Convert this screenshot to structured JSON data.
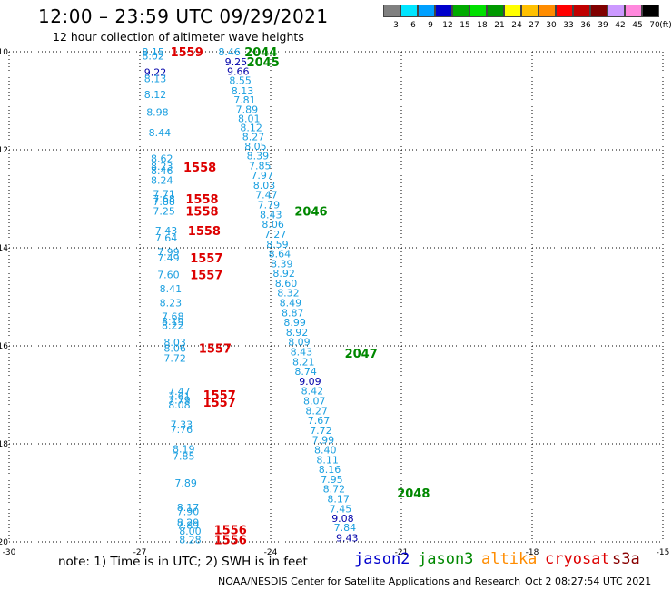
{
  "header": {
    "title": "12:00 – 23:59 UTC 09/29/2021",
    "subtitle": "12 hour collection of altimeter wave heights"
  },
  "colorbar": {
    "colors": [
      "#808080",
      "#00e5ff",
      "#00a0ff",
      "#0000cc",
      "#00aa00",
      "#00e000",
      "#009900",
      "#ffff00",
      "#ffc000",
      "#ff8c00",
      "#ff0000",
      "#c00000",
      "#800000",
      "#cc99ff",
      "#ff88dd",
      "#000000"
    ],
    "labels": [
      "3",
      "6",
      "9",
      "12",
      "15",
      "18",
      "21",
      "24",
      "27",
      "30",
      "33",
      "36",
      "39",
      "42",
      "45",
      "70"
    ],
    "unit": "(ft)"
  },
  "axes": {
    "lat_labels": [
      "-10",
      "-12",
      "-14",
      "-16",
      "-18",
      "-20"
    ],
    "lon_labels": [
      "-30",
      "-27",
      "-24",
      "-21",
      "-18",
      "-15"
    ]
  },
  "footer": {
    "note": "note: 1) Time is in UTC; 2) SWH is in feet",
    "satellites": [
      {
        "name": "jason2",
        "color": "#0000cc"
      },
      {
        "name": "jason3",
        "color": "#008800"
      },
      {
        "name": "altika",
        "color": "#ff8c00"
      },
      {
        "name": "cryosat",
        "color": "#dd0000"
      },
      {
        "name": "s3a",
        "color": "#880000"
      }
    ],
    "credit": "NOAA/NESDIS Center for Satellite Applications and Research",
    "timestamp": "Oct  2 08:27:54 UTC 2021"
  },
  "chart_data": {
    "type": "scatter",
    "lon_range": [
      -30,
      -15
    ],
    "lat_range": [
      -20,
      -10
    ],
    "lon_ticks": [
      -30,
      -27,
      -24,
      -21,
      -18,
      -15
    ],
    "lat_ticks": [
      -10,
      -12,
      -14,
      -16,
      -18,
      -20
    ],
    "grid": true,
    "series": [
      {
        "name": "cryosat",
        "color": "#dd0000",
        "time_labels": [
          {
            "text": "1559",
            "lon": -26.3,
            "lat": -10.0
          },
          {
            "text": "1558",
            "lon": -26.0,
            "lat": -12.35
          },
          {
            "text": "1558",
            "lon": -25.95,
            "lat": -13.0
          },
          {
            "text": "1558",
            "lon": -25.95,
            "lat": -13.25
          },
          {
            "text": "1558",
            "lon": -25.9,
            "lat": -13.65
          },
          {
            "text": "1557",
            "lon": -25.85,
            "lat": -14.2
          },
          {
            "text": "1557",
            "lon": -25.85,
            "lat": -14.55
          },
          {
            "text": "1557",
            "lon": -25.65,
            "lat": -16.05
          },
          {
            "text": "1557",
            "lon": -25.55,
            "lat": -17.0
          },
          {
            "text": "1557",
            "lon": -25.55,
            "lat": -17.15
          },
          {
            "text": "1556",
            "lon": -25.3,
            "lat": -19.75
          },
          {
            "text": "1556",
            "lon": -25.3,
            "lat": -19.95
          }
        ],
        "points": [
          {
            "lon": -26.95,
            "lat": -10.0,
            "swh": 8.15
          },
          {
            "lon": -26.95,
            "lat": -10.08,
            "swh": 8.02
          },
          {
            "lon": -26.9,
            "lat": -10.42,
            "swh": 9.22
          },
          {
            "lon": -26.9,
            "lat": -10.55,
            "swh": 8.13
          },
          {
            "lon": -26.9,
            "lat": -10.87,
            "swh": 8.12
          },
          {
            "lon": -26.85,
            "lat": -11.23,
            "swh": 8.98
          },
          {
            "lon": -26.8,
            "lat": -11.65,
            "swh": 8.44
          },
          {
            "lon": -26.75,
            "lat": -12.18,
            "swh": 8.62
          },
          {
            "lon": -26.75,
            "lat": -12.33,
            "swh": 8.23
          },
          {
            "lon": -26.75,
            "lat": -12.43,
            "swh": 8.46
          },
          {
            "lon": -26.75,
            "lat": -12.62,
            "swh": 8.24
          },
          {
            "lon": -26.7,
            "lat": -12.9,
            "swh": 7.71
          },
          {
            "lon": -26.7,
            "lat": -13.0,
            "swh": 7.68
          },
          {
            "lon": -26.7,
            "lat": -13.06,
            "swh": 7.88
          },
          {
            "lon": -26.7,
            "lat": -13.25,
            "swh": 7.25
          },
          {
            "lon": -26.65,
            "lat": -13.65,
            "swh": 7.43
          },
          {
            "lon": -26.65,
            "lat": -13.8,
            "swh": 7.64
          },
          {
            "lon": -26.6,
            "lat": -14.08,
            "swh": 7.99
          },
          {
            "lon": -26.6,
            "lat": -14.2,
            "swh": 7.49
          },
          {
            "lon": -26.6,
            "lat": -14.55,
            "swh": 7.6
          },
          {
            "lon": -26.55,
            "lat": -14.83,
            "swh": 8.41
          },
          {
            "lon": -26.55,
            "lat": -15.12,
            "swh": 8.23
          },
          {
            "lon": -26.5,
            "lat": -15.4,
            "swh": 7.68
          },
          {
            "lon": -26.5,
            "lat": -15.5,
            "swh": 8.19
          },
          {
            "lon": -26.5,
            "lat": -15.58,
            "swh": 8.22
          },
          {
            "lon": -26.45,
            "lat": -15.93,
            "swh": 8.03
          },
          {
            "lon": -26.45,
            "lat": -16.05,
            "swh": 8.06
          },
          {
            "lon": -26.45,
            "lat": -16.25,
            "swh": 7.72
          },
          {
            "lon": -26.35,
            "lat": -16.93,
            "swh": 7.47
          },
          {
            "lon": -26.35,
            "lat": -17.03,
            "swh": 7.61
          },
          {
            "lon": -26.35,
            "lat": -17.1,
            "swh": 7.79
          },
          {
            "lon": -26.35,
            "lat": -17.2,
            "swh": 8.08
          },
          {
            "lon": -26.3,
            "lat": -17.6,
            "swh": 7.33
          },
          {
            "lon": -26.3,
            "lat": -17.7,
            "swh": 7.76
          },
          {
            "lon": -26.25,
            "lat": -18.1,
            "swh": 8.19
          },
          {
            "lon": -26.25,
            "lat": -18.25,
            "swh": 7.85
          },
          {
            "lon": -26.2,
            "lat": -18.8,
            "swh": 7.89
          },
          {
            "lon": -26.15,
            "lat": -19.3,
            "swh": 8.17
          },
          {
            "lon": -26.15,
            "lat": -19.38,
            "swh": 7.9
          },
          {
            "lon": -26.15,
            "lat": -19.6,
            "swh": 8.29
          },
          {
            "lon": -26.15,
            "lat": -19.66,
            "swh": 7.89
          },
          {
            "lon": -26.1,
            "lat": -19.78,
            "swh": 8.0
          },
          {
            "lon": -26.1,
            "lat": -19.95,
            "swh": 8.28
          }
        ]
      },
      {
        "name": "jason3",
        "color": "#008800",
        "time_labels": [
          {
            "text": "2044",
            "lon": -24.6,
            "lat": -10.0
          },
          {
            "text": "2045",
            "lon": -24.55,
            "lat": -10.2
          },
          {
            "text": "2046",
            "lon": -23.45,
            "lat": -13.25
          },
          {
            "text": "2047",
            "lon": -22.3,
            "lat": -16.15
          },
          {
            "text": "2048",
            "lon": -21.1,
            "lat": -19.0
          }
        ],
        "points": [
          {
            "lon": -25.2,
            "lat": -10.0,
            "swh": 8.46
          },
          {
            "lon": -25.05,
            "lat": -10.2,
            "swh": 9.25
          },
          {
            "lon": -25.0,
            "lat": -10.4,
            "swh": 9.66
          },
          {
            "lon": -24.95,
            "lat": -10.58,
            "swh": 8.55
          },
          {
            "lon": -24.9,
            "lat": -10.8,
            "swh": 8.13
          },
          {
            "lon": -24.85,
            "lat": -10.98,
            "swh": 7.81
          },
          {
            "lon": -24.8,
            "lat": -11.18,
            "swh": 7.89
          },
          {
            "lon": -24.75,
            "lat": -11.36,
            "swh": 8.01
          },
          {
            "lon": -24.7,
            "lat": -11.55,
            "swh": 8.12
          },
          {
            "lon": -24.65,
            "lat": -11.73,
            "swh": 8.27
          },
          {
            "lon": -24.6,
            "lat": -11.93,
            "swh": 8.05
          },
          {
            "lon": -24.55,
            "lat": -12.12,
            "swh": 8.39
          },
          {
            "lon": -24.5,
            "lat": -12.32,
            "swh": 7.85
          },
          {
            "lon": -24.45,
            "lat": -12.52,
            "swh": 7.97
          },
          {
            "lon": -24.4,
            "lat": -12.72,
            "swh": 8.03
          },
          {
            "lon": -24.35,
            "lat": -12.92,
            "swh": 7.47
          },
          {
            "lon": -24.3,
            "lat": -13.12,
            "swh": 7.79
          },
          {
            "lon": -24.25,
            "lat": -13.32,
            "swh": 8.43
          },
          {
            "lon": -24.2,
            "lat": -13.52,
            "swh": 8.06
          },
          {
            "lon": -24.15,
            "lat": -13.72,
            "swh": 7.27
          },
          {
            "lon": -24.1,
            "lat": -13.93,
            "swh": 8.59
          },
          {
            "lon": -24.05,
            "lat": -14.12,
            "swh": 8.64
          },
          {
            "lon": -24.0,
            "lat": -14.32,
            "swh": 8.39
          },
          {
            "lon": -23.95,
            "lat": -14.52,
            "swh": 8.92
          },
          {
            "lon": -23.9,
            "lat": -14.72,
            "swh": 8.6
          },
          {
            "lon": -23.85,
            "lat": -14.92,
            "swh": 8.32
          },
          {
            "lon": -23.8,
            "lat": -15.12,
            "swh": 8.49
          },
          {
            "lon": -23.75,
            "lat": -15.32,
            "swh": 8.87
          },
          {
            "lon": -23.7,
            "lat": -15.52,
            "swh": 8.99
          },
          {
            "lon": -23.65,
            "lat": -15.72,
            "swh": 8.92
          },
          {
            "lon": -23.6,
            "lat": -15.92,
            "swh": 8.09
          },
          {
            "lon": -23.55,
            "lat": -16.12,
            "swh": 8.43
          },
          {
            "lon": -23.5,
            "lat": -16.32,
            "swh": 8.21
          },
          {
            "lon": -23.45,
            "lat": -16.52,
            "swh": 8.74
          },
          {
            "lon": -23.35,
            "lat": -16.72,
            "swh": 9.09
          },
          {
            "lon": -23.3,
            "lat": -16.92,
            "swh": 8.42
          },
          {
            "lon": -23.25,
            "lat": -17.12,
            "swh": 8.07
          },
          {
            "lon": -23.2,
            "lat": -17.32,
            "swh": 8.27
          },
          {
            "lon": -23.15,
            "lat": -17.52,
            "swh": 7.67
          },
          {
            "lon": -23.1,
            "lat": -17.72,
            "swh": 7.72
          },
          {
            "lon": -23.05,
            "lat": -17.92,
            "swh": 7.99
          },
          {
            "lon": -23.0,
            "lat": -18.12,
            "swh": 8.4
          },
          {
            "lon": -22.95,
            "lat": -18.32,
            "swh": 8.11
          },
          {
            "lon": -22.9,
            "lat": -18.52,
            "swh": 8.16
          },
          {
            "lon": -22.85,
            "lat": -18.72,
            "swh": 7.95
          },
          {
            "lon": -22.8,
            "lat": -18.92,
            "swh": 8.72
          },
          {
            "lon": -22.7,
            "lat": -19.12,
            "swh": 8.17
          },
          {
            "lon": -22.65,
            "lat": -19.32,
            "swh": 7.45
          },
          {
            "lon": -22.6,
            "lat": -19.52,
            "swh": 9.08
          },
          {
            "lon": -22.55,
            "lat": -19.7,
            "swh": 7.84
          },
          {
            "lon": -22.5,
            "lat": -19.92,
            "swh": 9.43
          }
        ]
      }
    ]
  }
}
